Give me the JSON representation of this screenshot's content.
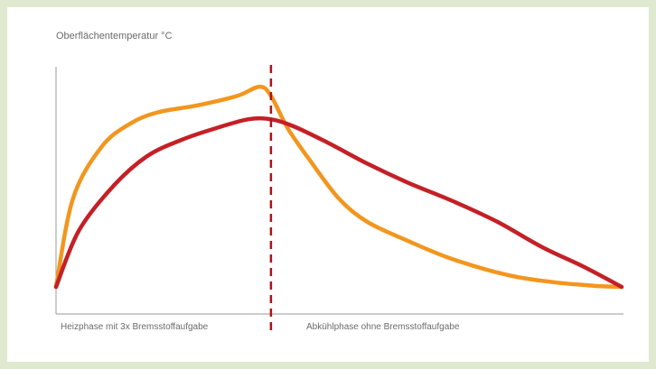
{
  "colors": {
    "background": "#dfe9cf",
    "panel": "#ffffff",
    "axis": "#9a9a9a",
    "divider": "#a8161c"
  },
  "chart_data": {
    "type": "line",
    "title": "",
    "ylabel": "Oberflächentemperatur °C",
    "xlabel": "",
    "xlim": [
      0,
      100
    ],
    "ylim": [
      0,
      100
    ],
    "grid": false,
    "legend": "none",
    "divider_x": 38,
    "phase_labels": {
      "left": "Heizphase mit 3x Bremsstoffaufgabe",
      "right": "Abkühlphase ohne Bremsstoffaufgabe"
    },
    "series": [
      {
        "color": "#f2961e",
        "x": [
          0,
          3,
          8,
          13,
          18,
          25,
          32,
          36,
          38,
          41,
          45,
          50,
          55,
          62,
          70,
          80,
          88,
          95,
          100
        ],
        "y": [
          0,
          38,
          60,
          70,
          75,
          78,
          82,
          86,
          82,
          68,
          54,
          38,
          28,
          20,
          12,
          5,
          2,
          0.5,
          0
        ]
      },
      {
        "color": "#c42026",
        "x": [
          0,
          4,
          10,
          16,
          22,
          28,
          34,
          38,
          42,
          48,
          55,
          62,
          70,
          78,
          86,
          93,
          100
        ],
        "y": [
          0,
          24,
          43,
          56,
          63,
          68,
          72,
          72,
          69,
          62,
          53,
          45,
          37,
          28,
          17,
          9,
          0
        ]
      }
    ]
  }
}
